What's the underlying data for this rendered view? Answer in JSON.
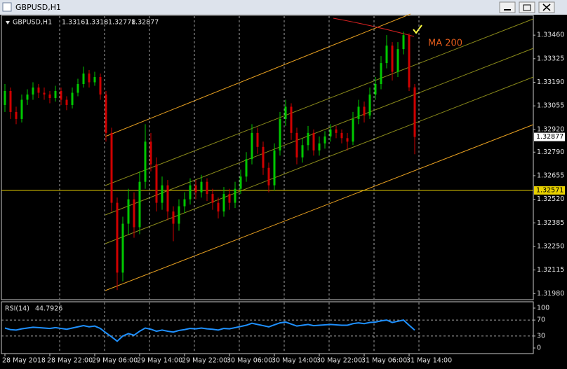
{
  "window_title": "GBPUSD,H1",
  "chart_data": {
    "type": "candlestick",
    "symbol": "GBPUSD,H1",
    "categories": [
      "28 May 2018",
      null,
      null,
      null,
      null,
      null,
      null,
      null,
      "28 May 22:00",
      null,
      null,
      null,
      null,
      null,
      null,
      null,
      "29 May 06:00",
      null,
      null,
      null,
      null,
      null,
      null,
      null,
      "29 May 14:00",
      null,
      null,
      null,
      null,
      null,
      null,
      null,
      "29 May 22:00",
      null,
      null,
      null,
      null,
      null,
      null,
      null,
      "30 May 06:00",
      null,
      null,
      null,
      null,
      null,
      null,
      null,
      "30 May 14:00",
      null,
      null,
      null,
      null,
      null,
      null,
      null,
      "30 May 22:00",
      null,
      null,
      null,
      null,
      null,
      null,
      null,
      "31 May 06:00",
      null,
      null,
      null,
      null,
      null,
      null,
      null,
      "31 May 14:00",
      null
    ],
    "candles": [
      [
        1.3306,
        1.3318,
        1.3302,
        1.3314
      ],
      [
        1.3314,
        1.3316,
        1.3298,
        1.3302
      ],
      [
        1.3302,
        1.3305,
        1.3295,
        1.3298
      ],
      [
        1.3298,
        1.3312,
        1.3296,
        1.3309
      ],
      [
        1.3309,
        1.3315,
        1.3306,
        1.3312
      ],
      [
        1.3312,
        1.3319,
        1.3309,
        1.3316
      ],
      [
        1.3316,
        1.3318,
        1.331,
        1.3313
      ],
      [
        1.3313,
        1.3316,
        1.3309,
        1.3312
      ],
      [
        1.3312,
        1.3314,
        1.3307,
        1.331
      ],
      [
        1.331,
        1.3317,
        1.3308,
        1.3314
      ],
      [
        1.3314,
        1.3316,
        1.3306,
        1.3309
      ],
      [
        1.3309,
        1.3311,
        1.3303,
        1.3306
      ],
      [
        1.3306,
        1.3316,
        1.3304,
        1.3313
      ],
      [
        1.3313,
        1.3321,
        1.3311,
        1.3318
      ],
      [
        1.3318,
        1.3328,
        1.3316,
        1.3324
      ],
      [
        1.3324,
        1.3326,
        1.3316,
        1.3319
      ],
      [
        1.3319,
        1.3325,
        1.3317,
        1.3322
      ],
      [
        1.3322,
        1.3324,
        1.3309,
        1.3312
      ],
      [
        1.3312,
        1.3314,
        1.3285,
        1.329
      ],
      [
        1.329,
        1.3293,
        1.3245,
        1.325
      ],
      [
        1.325,
        1.3253,
        1.32,
        1.321
      ],
      [
        1.321,
        1.3242,
        1.3205,
        1.3238
      ],
      [
        1.3238,
        1.3258,
        1.3232,
        1.3252
      ],
      [
        1.3252,
        1.3256,
        1.323,
        1.3236
      ],
      [
        1.3236,
        1.3268,
        1.3232,
        1.3262
      ],
      [
        1.3262,
        1.3295,
        1.3258,
        1.3285
      ],
      [
        1.3285,
        1.329,
        1.3268,
        1.3272
      ],
      [
        1.3272,
        1.3276,
        1.3245,
        1.325
      ],
      [
        1.325,
        1.3265,
        1.3246,
        1.326
      ],
      [
        1.326,
        1.3263,
        1.324,
        1.3245
      ],
      [
        1.3245,
        1.3248,
        1.3228,
        1.3238
      ],
      [
        1.3238,
        1.3252,
        1.3234,
        1.3248
      ],
      [
        1.3248,
        1.3256,
        1.3244,
        1.3252
      ],
      [
        1.3252,
        1.3264,
        1.3249,
        1.326
      ],
      [
        1.326,
        1.3263,
        1.3252,
        1.3256
      ],
      [
        1.3256,
        1.3266,
        1.3253,
        1.3262
      ],
      [
        1.3262,
        1.3264,
        1.3251,
        1.3255
      ],
      [
        1.3255,
        1.3258,
        1.3246,
        1.325
      ],
      [
        1.325,
        1.3253,
        1.3241,
        1.3245
      ],
      [
        1.3245,
        1.3259,
        1.3242,
        1.3255
      ],
      [
        1.3255,
        1.3258,
        1.3246,
        1.325
      ],
      [
        1.325,
        1.3262,
        1.3247,
        1.3258
      ],
      [
        1.3258,
        1.3269,
        1.3255,
        1.3265
      ],
      [
        1.3265,
        1.3279,
        1.3262,
        1.3275
      ],
      [
        1.3275,
        1.3295,
        1.3272,
        1.329
      ],
      [
        1.329,
        1.3293,
        1.3278,
        1.3282
      ],
      [
        1.3282,
        1.3285,
        1.3266,
        1.327
      ],
      [
        1.327,
        1.3273,
        1.3256,
        1.326
      ],
      [
        1.326,
        1.3284,
        1.3257,
        1.328
      ],
      [
        1.328,
        1.3302,
        1.3277,
        1.3298
      ],
      [
        1.3298,
        1.3309,
        1.3294,
        1.3305
      ],
      [
        1.3305,
        1.3307,
        1.3286,
        1.329
      ],
      [
        1.329,
        1.3293,
        1.3272,
        1.3276
      ],
      [
        1.3276,
        1.3287,
        1.3273,
        1.3283
      ],
      [
        1.3283,
        1.3294,
        1.328,
        1.329
      ],
      [
        1.329,
        1.3292,
        1.3277,
        1.328
      ],
      [
        1.328,
        1.3288,
        1.3277,
        1.3284
      ],
      [
        1.3284,
        1.3291,
        1.3281,
        1.3288
      ],
      [
        1.3288,
        1.3295,
        1.3285,
        1.3292
      ],
      [
        1.3292,
        1.3294,
        1.3287,
        1.329
      ],
      [
        1.329,
        1.3292,
        1.3284,
        1.3287
      ],
      [
        1.3287,
        1.329,
        1.328,
        1.3285
      ],
      [
        1.3285,
        1.3302,
        1.3283,
        1.3298
      ],
      [
        1.3298,
        1.3309,
        1.3295,
        1.3305
      ],
      [
        1.3305,
        1.3308,
        1.3296,
        1.33
      ],
      [
        1.33,
        1.3316,
        1.3298,
        1.3312
      ],
      [
        1.3312,
        1.3322,
        1.3309,
        1.3318
      ],
      [
        1.3318,
        1.3334,
        1.3315,
        1.333
      ],
      [
        1.333,
        1.3346,
        1.3327,
        1.334
      ],
      [
        1.334,
        1.3342,
        1.332,
        1.3325
      ],
      [
        1.3325,
        1.3342,
        1.3322,
        1.3338
      ],
      [
        1.3338,
        1.3348,
        1.3335,
        1.3346
      ],
      [
        1.3346,
        1.3347,
        1.3314,
        1.33161
      ],
      [
        1.33161,
        1.3318,
        1.32778,
        1.32877
      ]
    ],
    "colors": {
      "up": "#00c800",
      "down": "#d00000"
    },
    "ylim": [
      1.31945,
      1.33573
    ],
    "yticks": [
      {
        "value": 1.3346,
        "label": "1.33460"
      },
      1.33325,
      {
        "value": 1.3319,
        "label": "1.33190"
      },
      1.33055,
      {
        "value": 1.3292,
        "label": "1.32920"
      },
      {
        "value": 1.3279,
        "label": "1.32790"
      },
      1.32655,
      {
        "value": 1.3252,
        "label": "1.32520"
      },
      1.32385,
      {
        "value": 1.3225,
        "label": "1.32250"
      },
      1.32115,
      {
        "value": 1.3198,
        "label": "1.31980"
      }
    ],
    "hline": {
      "value": 1.32571,
      "color": "#e8d000"
    },
    "annotation": "MA 200",
    "grid": true,
    "rsi": {
      "name": "RSI(14)",
      "color": "#1e90ff",
      "ylim": [
        0,
        100
      ],
      "yticks": [
        100,
        70,
        30,
        0
      ],
      "values": [
        50,
        46,
        45,
        48,
        50,
        52,
        51,
        50,
        49,
        51,
        49,
        47,
        50,
        53,
        56,
        53,
        55,
        49,
        38,
        28,
        17,
        30,
        36,
        32,
        42,
        50,
        47,
        42,
        45,
        42,
        40,
        44,
        46,
        49,
        48,
        50,
        48,
        47,
        45,
        49,
        48,
        51,
        54,
        57,
        62,
        59,
        56,
        53,
        58,
        63,
        65,
        60,
        55,
        57,
        59,
        56,
        57,
        58,
        59,
        58,
        57,
        57,
        61,
        63,
        61,
        64,
        65,
        68,
        70,
        64,
        67,
        70,
        57,
        44.7926
      ]
    }
  }
}
